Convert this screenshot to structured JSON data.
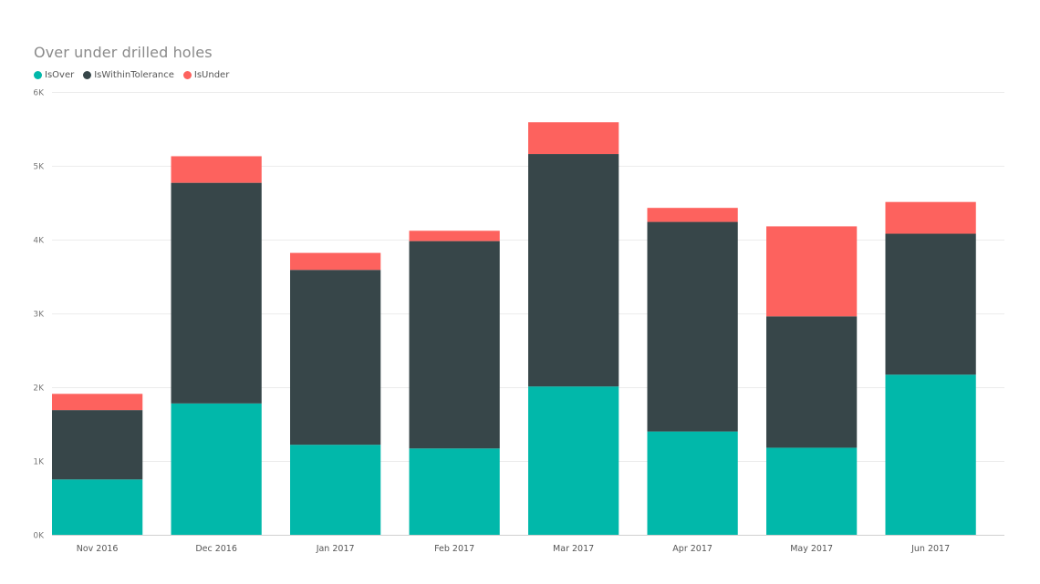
{
  "chart_data": {
    "type": "bar",
    "stacked": true,
    "title": "Over under drilled holes",
    "xlabel": "",
    "ylabel": "",
    "ylim": [
      0,
      6000
    ],
    "yticks": [
      0,
      1000,
      2000,
      3000,
      4000,
      5000,
      6000
    ],
    "ytick_labels": [
      "0K",
      "1K",
      "2K",
      "3K",
      "4K",
      "5K",
      "6K"
    ],
    "grid": true,
    "legend_position": "top-left",
    "categories": [
      "Nov 2016",
      "Dec 2016",
      "Jan 2017",
      "Feb 2017",
      "Mar 2017",
      "Apr 2017",
      "May 2017",
      "Jun 2017"
    ],
    "series": [
      {
        "name": "IsOver",
        "color": "#01b8aa",
        "values": [
          750,
          1780,
          1220,
          1170,
          2010,
          1400,
          1180,
          2170
        ]
      },
      {
        "name": "IsWithinTolerance",
        "color": "#374649",
        "values": [
          940,
          2990,
          2370,
          2810,
          3150,
          2840,
          1780,
          1910
        ]
      },
      {
        "name": "IsUnder",
        "color": "#fd625e",
        "values": [
          220,
          360,
          230,
          140,
          430,
          190,
          1220,
          430
        ]
      }
    ]
  }
}
